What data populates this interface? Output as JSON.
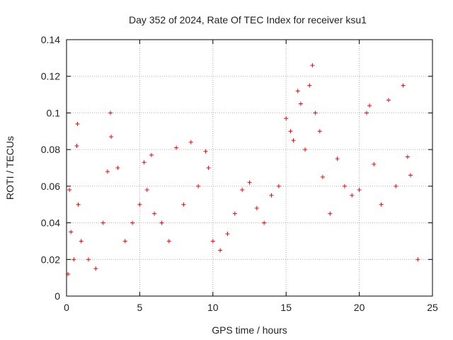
{
  "chart_data": {
    "type": "scatter",
    "title": "Day 352 of 2024, Rate Of TEC Index for receiver ksu1",
    "xlabel": "GPS time / hours",
    "ylabel": "ROTI / TECUs",
    "xlim": [
      0,
      25
    ],
    "ylim": [
      0,
      0.14
    ],
    "x_ticks": [
      0,
      5,
      10,
      15,
      20,
      25
    ],
    "x_tick_labels": [
      "0",
      "5",
      "10",
      "15",
      "20",
      "25"
    ],
    "y_ticks": [
      0,
      0.02,
      0.04,
      0.06,
      0.08,
      0.1,
      0.12,
      0.14
    ],
    "y_tick_labels": [
      "0",
      "0.02",
      "0.04",
      "0.06",
      "0.08",
      "0.1",
      "0.12",
      "0.14"
    ],
    "grid": true,
    "marker": "+",
    "series_color": "#ff0000",
    "series": [
      {
        "name": "ROTI",
        "x": [
          0.1,
          0.2,
          0.3,
          0.5,
          0.7,
          0.75,
          0.8,
          1.0,
          1.5,
          2.0,
          2.5,
          2.8,
          3.0,
          3.05,
          3.5,
          4.0,
          4.5,
          5.0,
          5.3,
          5.5,
          5.8,
          6.0,
          6.5,
          7.0,
          7.5,
          8.0,
          8.5,
          9.0,
          9.5,
          9.7,
          10.0,
          10.5,
          11.0,
          11.5,
          12.0,
          12.5,
          13.0,
          13.5,
          14.0,
          14.5,
          15.0,
          15.3,
          15.5,
          15.8,
          16.0,
          16.3,
          16.6,
          16.8,
          17.0,
          17.3,
          17.5,
          18.0,
          18.5,
          19.0,
          19.5,
          20.0,
          20.5,
          20.7,
          21.0,
          21.5,
          22.0,
          22.5,
          23.0,
          23.3,
          23.5,
          24.0
        ],
        "y": [
          0.012,
          0.058,
          0.035,
          0.02,
          0.082,
          0.094,
          0.05,
          0.03,
          0.02,
          0.015,
          0.04,
          0.068,
          0.1,
          0.087,
          0.07,
          0.03,
          0.04,
          0.05,
          0.073,
          0.058,
          0.077,
          0.045,
          0.04,
          0.03,
          0.081,
          0.05,
          0.084,
          0.06,
          0.079,
          0.07,
          0.03,
          0.025,
          0.034,
          0.045,
          0.058,
          0.062,
          0.048,
          0.04,
          0.055,
          0.06,
          0.097,
          0.09,
          0.085,
          0.112,
          0.105,
          0.08,
          0.115,
          0.126,
          0.1,
          0.09,
          0.065,
          0.045,
          0.075,
          0.06,
          0.055,
          0.058,
          0.1,
          0.104,
          0.072,
          0.05,
          0.107,
          0.06,
          0.115,
          0.076,
          0.066,
          0.02
        ]
      }
    ]
  }
}
